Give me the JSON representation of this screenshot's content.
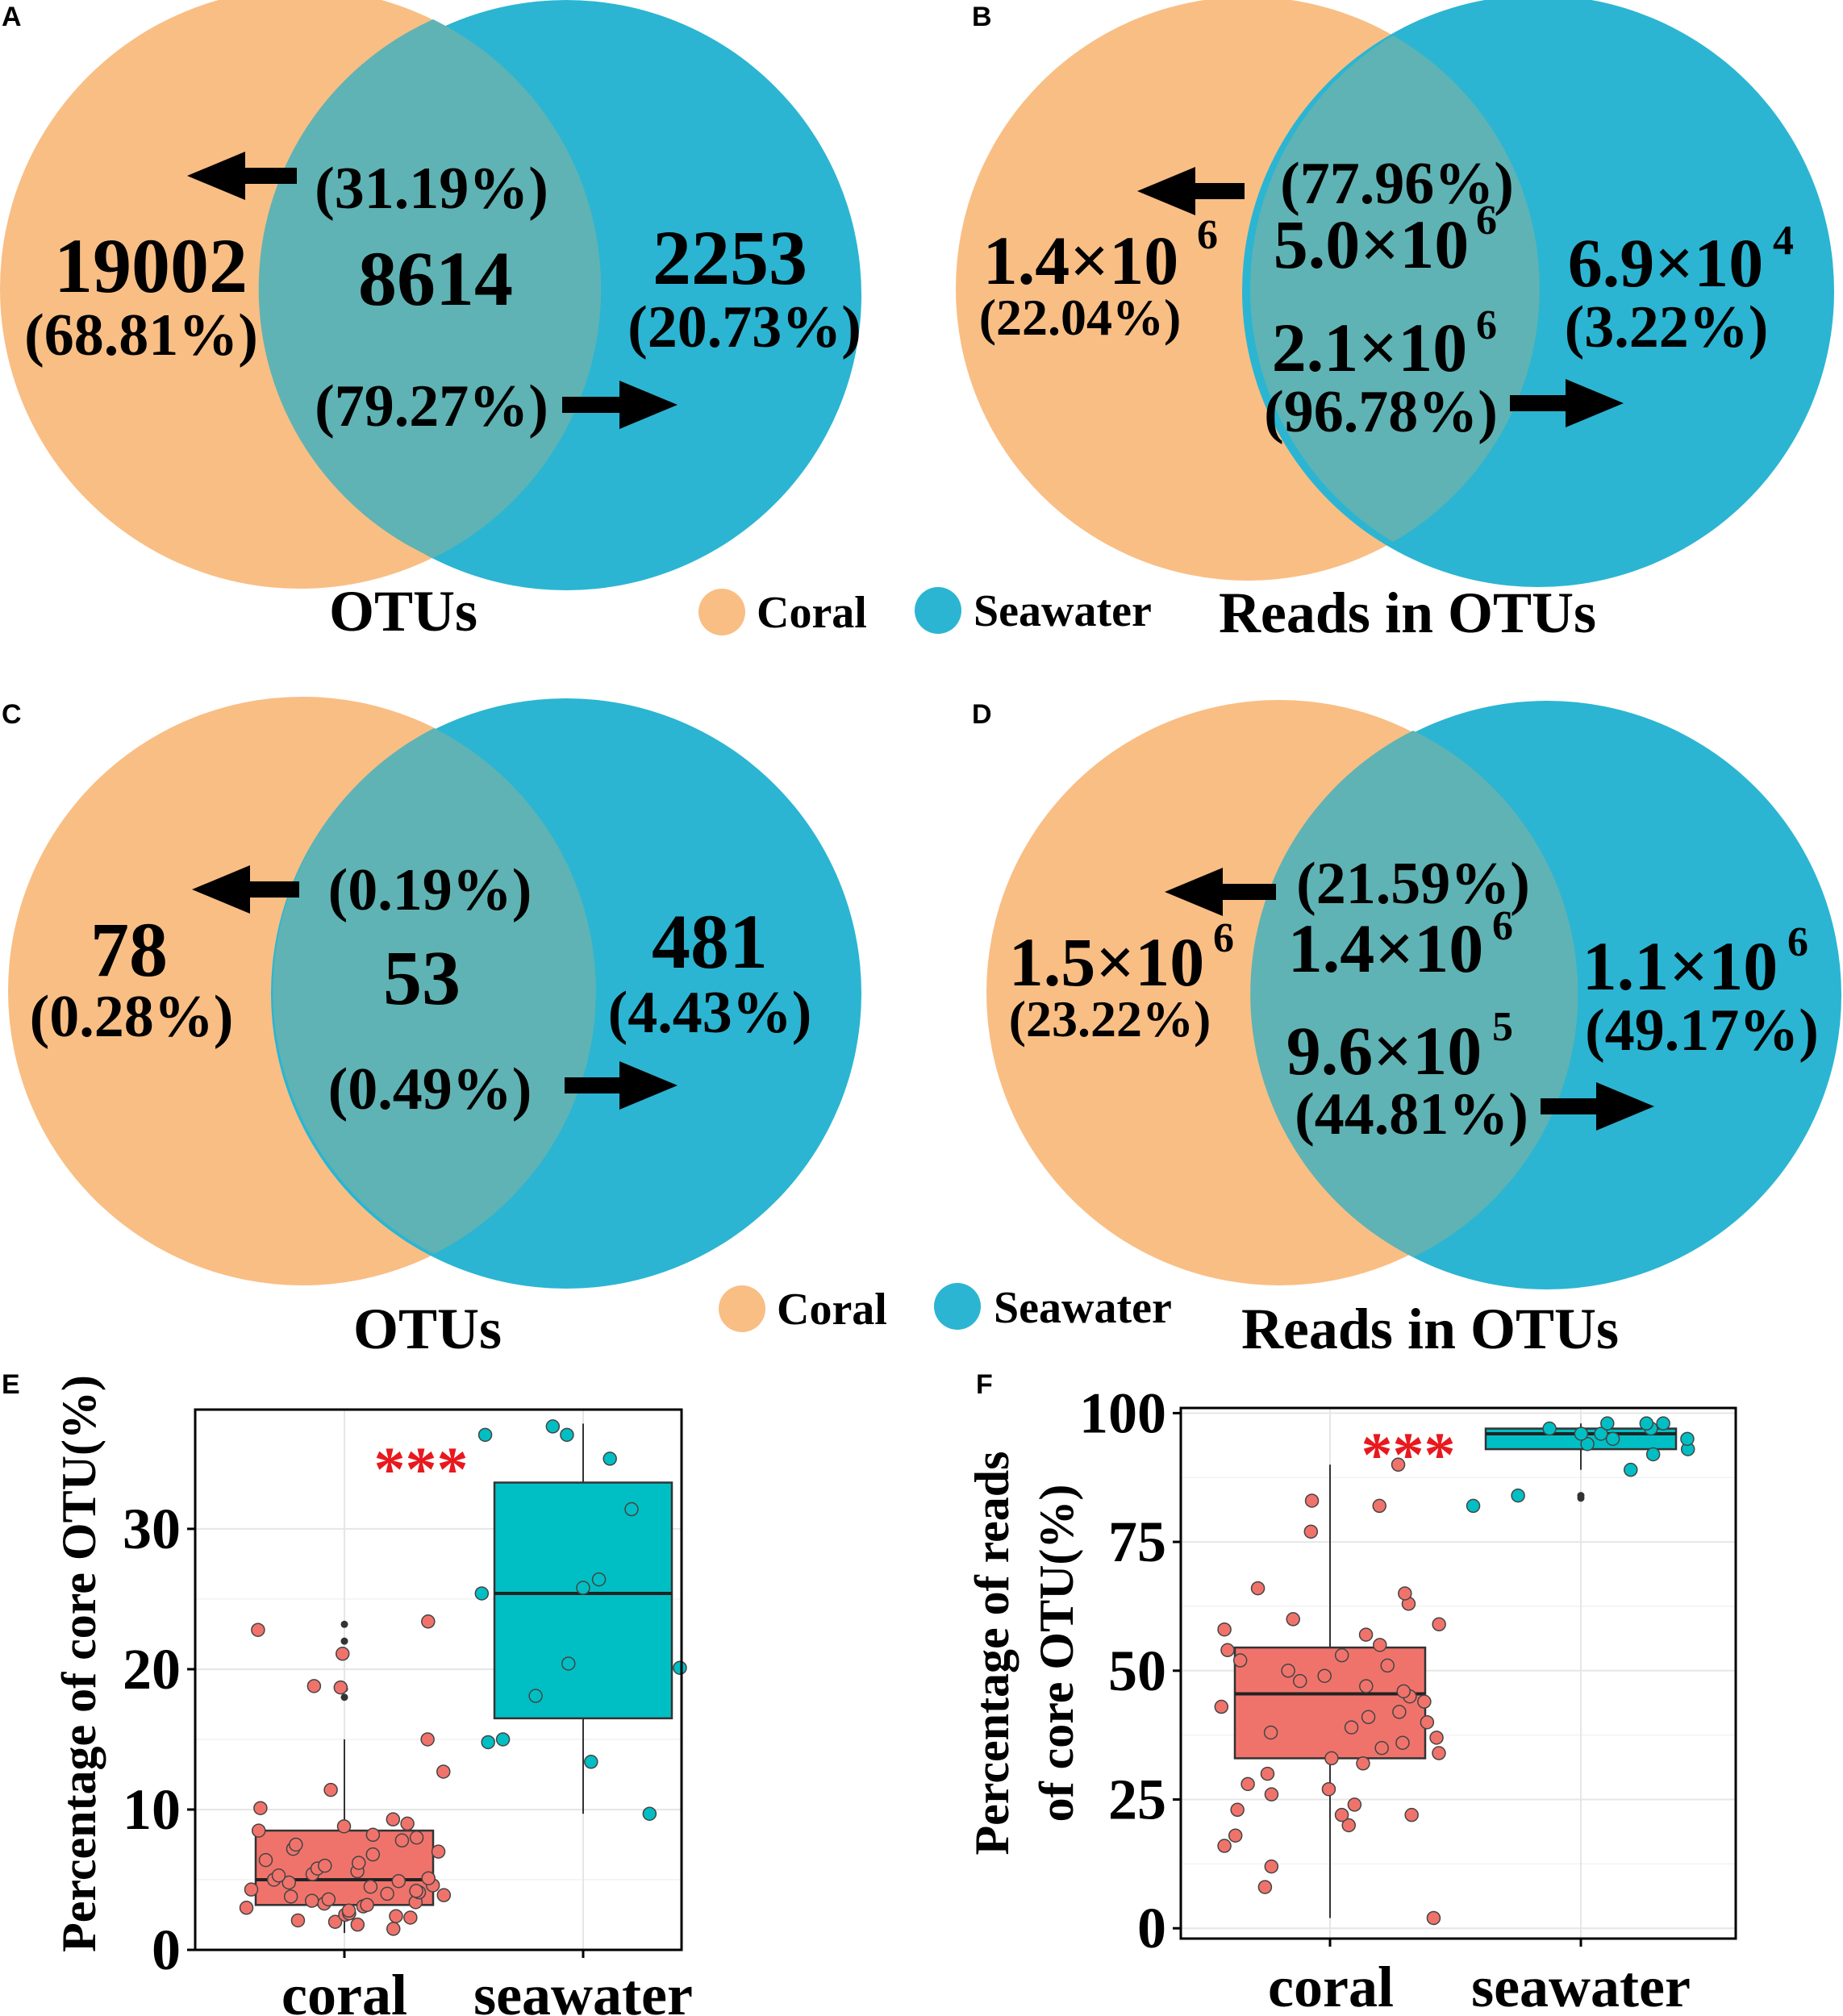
{
  "colors": {
    "coral": "#F9BE84",
    "seawater": "#2BB5D2",
    "overlap": "#5FB3B4",
    "box_coral": "#F0736B",
    "box_seawater": "#00BFC4",
    "sig": "#E8191E"
  },
  "legend": {
    "coral": "Coral",
    "seawater": "Seawater"
  },
  "panels": {
    "A": {
      "letter": "A",
      "title": "OTUs",
      "left_value": "19002",
      "left_pct": "(68.81%)",
      "shared_value": "8614",
      "shared_pct_coral": "(31.19%)",
      "shared_pct_seawater": "(79.27%)",
      "right_value": "2253",
      "right_pct": "(20.73%)"
    },
    "B": {
      "letter": "B",
      "title": "Reads in OTUs",
      "left_base": "1.4×10",
      "left_exp": "6",
      "left_pct": "(22.04%)",
      "shared_top_base": "5.0×10",
      "shared_top_exp": "6",
      "shared_pct_coral": "(77.96%)",
      "shared_bot_base": "2.1×10",
      "shared_bot_exp": "6",
      "shared_pct_seawater": "(96.78%)",
      "right_base": "6.9×10",
      "right_exp": "4",
      "right_pct": "(3.22%)"
    },
    "C": {
      "letter": "C",
      "title": "OTUs",
      "left_value": "78",
      "left_pct": "(0.28%)",
      "shared_value": "53",
      "shared_pct_coral": "(0.19%)",
      "shared_pct_seawater": "(0.49%)",
      "right_value": "481",
      "right_pct": "(4.43%)"
    },
    "D": {
      "letter": "D",
      "title": "Reads in OTUs",
      "left_base": "1.5×10",
      "left_exp": "6",
      "left_pct": "(23.22%)",
      "shared_top_base": "1.4×10",
      "shared_top_exp": "6",
      "shared_pct_coral": "(21.59%)",
      "shared_bot_base": "9.6×10",
      "shared_bot_exp": "5",
      "shared_pct_seawater": "(44.81%)",
      "right_base": "1.1×10",
      "right_exp": "6",
      "right_pct": "(49.17%)"
    }
  },
  "chart_data": [
    {
      "type": "box",
      "panel": "E",
      "letter": "E",
      "ylabel": "Percentage of core OTU(%)",
      "categories": [
        "coral",
        "seawater"
      ],
      "ylim": [
        0,
        38.5
      ],
      "yticks": [
        0,
        10,
        20,
        30
      ],
      "ytick_labels": [
        "0",
        "10",
        "20",
        "30"
      ],
      "significance": "***",
      "boxes": [
        {
          "group": "coral",
          "q1": 3.2,
          "median": 5.0,
          "q3": 8.5,
          "whisker_low": 1.2,
          "whisker_high": 15.0,
          "outliers": [
            18.0,
            18.6,
            22.0,
            23.2
          ]
        },
        {
          "group": "seawater",
          "q1": 16.5,
          "median": 25.4,
          "q3": 33.3,
          "whisker_low": 9.7,
          "whisker_high": 37.5,
          "outliers": []
        }
      ],
      "points": {
        "coral": [
          1.5,
          1.8,
          2.0,
          2.1,
          2.3,
          2.4,
          2.5,
          2.6,
          2.8,
          3.0,
          3.1,
          3.2,
          3.3,
          3.4,
          3.5,
          3.6,
          3.8,
          3.9,
          4.0,
          4.1,
          4.2,
          4.3,
          4.5,
          4.6,
          4.8,
          4.9,
          5.0,
          5.1,
          5.3,
          5.4,
          5.6,
          5.8,
          6.0,
          6.2,
          6.4,
          6.8,
          7.0,
          7.2,
          7.5,
          7.8,
          8.0,
          8.2,
          8.5,
          8.8,
          9.0,
          9.3,
          10.1,
          11.4,
          12.7,
          15.0,
          18.7,
          18.8,
          21.1,
          22.8,
          23.4
        ],
        "seawater": [
          9.7,
          13.4,
          14.8,
          15.0,
          18.1,
          20.1,
          20.4,
          25.4,
          25.8,
          26.4,
          31.4,
          35.0,
          36.7,
          36.7,
          37.3
        ]
      }
    },
    {
      "type": "box",
      "panel": "F",
      "letter": "F",
      "ylabel": [
        "Percentage of reads",
        "of core OTU(%)"
      ],
      "categories": [
        "coral",
        "seawater"
      ],
      "ylim": [
        -2,
        101
      ],
      "yticks": [
        0,
        25,
        50,
        75,
        100
      ],
      "ytick_labels": [
        "0",
        "25",
        "50",
        "75",
        "100"
      ],
      "significance": "***",
      "boxes": [
        {
          "group": "coral",
          "q1": 33.0,
          "median": 45.5,
          "q3": 54.5,
          "whisker_low": 2.0,
          "whisker_high": 90.0,
          "outliers": []
        },
        {
          "group": "seawater",
          "q1": 93.0,
          "median": 96.0,
          "q3": 97.0,
          "whisker_low": 89.0,
          "whisker_high": 98.0,
          "outliers": [
            83.5,
            84.0
          ]
        }
      ],
      "points": {
        "coral": [
          2,
          8,
          12,
          16,
          18,
          20,
          22,
          22,
          23,
          24,
          26,
          27,
          28,
          30,
          32,
          33,
          34,
          35,
          36,
          37,
          38,
          39,
          40,
          41,
          42,
          43,
          44,
          45,
          46,
          47,
          48,
          49,
          50,
          51,
          52,
          53,
          54,
          55,
          57,
          58,
          59,
          60,
          63,
          65,
          66,
          77,
          82,
          83,
          90
        ],
        "seawater": [
          82,
          84,
          89,
          92,
          93,
          94,
          95,
          95,
          96,
          96,
          97,
          97,
          98,
          98,
          98
        ]
      }
    }
  ]
}
